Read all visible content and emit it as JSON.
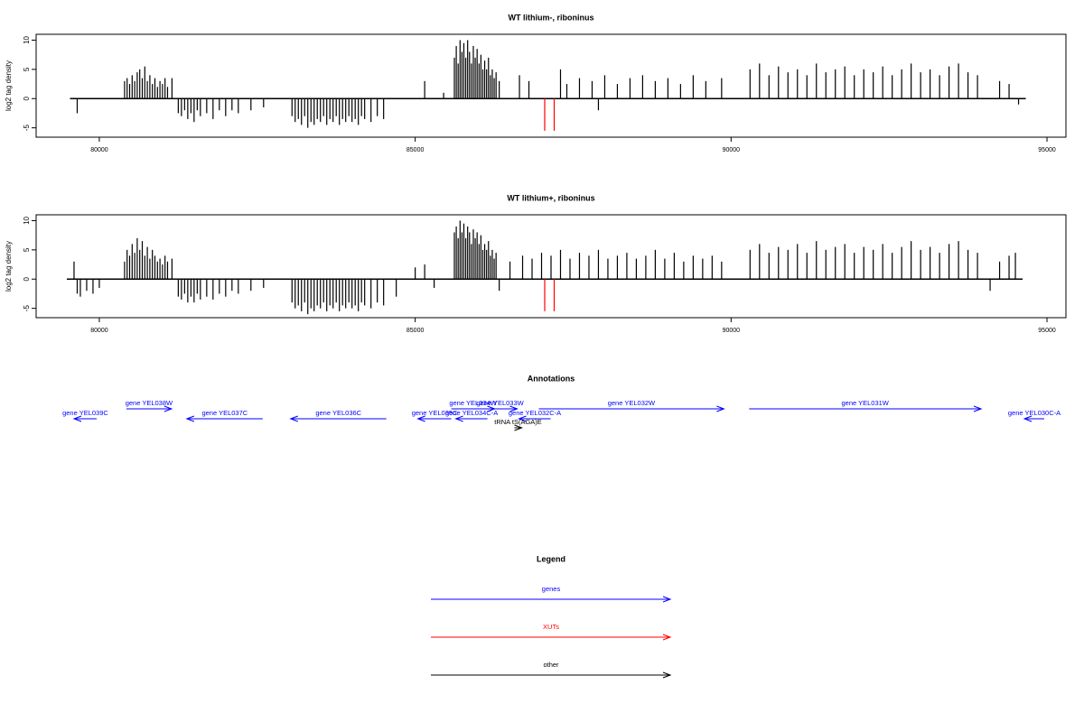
{
  "chart_data": [
    {
      "type": "bar",
      "title": "WT lithium-, riboninus",
      "y_label": "log2 tag density",
      "color": "#000000",
      "xlim": [
        79000,
        95300
      ],
      "ylim": [
        -6.6,
        11
      ],
      "xticks": [
        80000,
        85000,
        90000,
        95000
      ],
      "yticks": [
        -5,
        0,
        5,
        10
      ],
      "x": [
        79650,
        80400,
        80440,
        80480,
        80520,
        80560,
        80600,
        80640,
        80680,
        80720,
        80760,
        80800,
        80840,
        80880,
        80920,
        80960,
        81000,
        81040,
        81080,
        81150,
        81250,
        81300,
        81350,
        81400,
        81450,
        81500,
        81550,
        81600,
        81700,
        81800,
        81900,
        82000,
        82100,
        82200,
        82400,
        82600,
        83050,
        83100,
        83150,
        83200,
        83250,
        83300,
        83350,
        83400,
        83450,
        83500,
        83550,
        83600,
        83650,
        83700,
        83750,
        83800,
        83850,
        83900,
        83950,
        84000,
        84050,
        84100,
        84150,
        84200,
        84300,
        84400,
        84500,
        85150,
        85450,
        85620,
        85650,
        85680,
        85710,
        85740,
        85770,
        85800,
        85830,
        85860,
        85890,
        85920,
        85950,
        85980,
        86010,
        86040,
        86070,
        86100,
        86130,
        86160,
        86190,
        86220,
        86250,
        86280,
        86330,
        86650,
        86800,
        87300,
        87400,
        87600,
        87800,
        87900,
        88000,
        88200,
        88400,
        88600,
        88800,
        89000,
        89200,
        89400,
        89600,
        89850,
        90300,
        90450,
        90600,
        90750,
        90900,
        91050,
        91200,
        91350,
        91500,
        91650,
        91800,
        91950,
        92100,
        92250,
        92400,
        92550,
        92700,
        92850,
        93000,
        93150,
        93300,
        93450,
        93600,
        93750,
        93900,
        94250,
        94400,
        94550
      ],
      "values": [
        -2.5,
        3,
        3.5,
        2.5,
        4,
        3,
        4.5,
        5,
        3.5,
        5.5,
        3,
        4,
        2.5,
        3.5,
        2,
        3,
        2.5,
        3.5,
        2,
        3.5,
        -2.5,
        -3,
        -2,
        -3.5,
        -2.5,
        -4,
        -2,
        -3,
        -2.5,
        -3.5,
        -2,
        -3,
        -2,
        -2.5,
        -2,
        -1.5,
        -3,
        -4,
        -3.5,
        -4.5,
        -3,
        -5,
        -4,
        -4.5,
        -3.5,
        -4,
        -3,
        -4.5,
        -3.5,
        -4,
        -3,
        -4.5,
        -3.5,
        -4,
        -3,
        -4,
        -3.5,
        -4.5,
        -3,
        -3.5,
        -4,
        -3,
        -3.5,
        3,
        1,
        7,
        9,
        6,
        10,
        8,
        9.5,
        7,
        10,
        8,
        6,
        9,
        7,
        8.5,
        6,
        7.5,
        5,
        6.5,
        5,
        7,
        4,
        5,
        3.5,
        4.5,
        3,
        4,
        3,
        5,
        2.5,
        3.5,
        3,
        -2,
        4,
        2.5,
        3.5,
        4,
        3,
        3.5,
        2.5,
        4,
        3,
        3.5,
        5,
        6,
        4,
        5.5,
        4.5,
        5,
        4,
        6,
        4.5,
        5,
        5.5,
        4,
        5,
        4.5,
        5.5,
        4,
        5,
        6,
        4.5,
        5,
        4,
        5.5,
        6,
        4.5,
        4,
        3,
        2.5,
        -1
      ],
      "highlights": {
        "color": "#ff0000",
        "x": [
          87050,
          87200
        ],
        "values": [
          -5.5,
          -5.5
        ]
      }
    },
    {
      "type": "bar",
      "title": "WT lithium+, riboninus",
      "y_label": "log2 tag density",
      "color": "#000000",
      "xlim": [
        79000,
        95300
      ],
      "ylim": [
        -6.6,
        11
      ],
      "xticks": [
        80000,
        85000,
        90000,
        95000
      ],
      "yticks": [
        -5,
        0,
        5,
        10
      ],
      "x": [
        79600,
        79650,
        79700,
        79800,
        79900,
        80000,
        80400,
        80440,
        80480,
        80520,
        80560,
        80600,
        80640,
        80680,
        80720,
        80760,
        80800,
        80840,
        80880,
        80920,
        80960,
        81000,
        81040,
        81080,
        81150,
        81250,
        81300,
        81350,
        81400,
        81450,
        81500,
        81550,
        81600,
        81700,
        81800,
        81900,
        82000,
        82100,
        82200,
        82400,
        82600,
        83050,
        83100,
        83150,
        83200,
        83250,
        83300,
        83350,
        83400,
        83450,
        83500,
        83550,
        83600,
        83650,
        83700,
        83750,
        83800,
        83850,
        83900,
        83950,
        84000,
        84050,
        84100,
        84150,
        84200,
        84300,
        84400,
        84500,
        84700,
        85000,
        85150,
        85300,
        85620,
        85650,
        85680,
        85710,
        85740,
        85770,
        85800,
        85830,
        85860,
        85890,
        85920,
        85950,
        85980,
        86010,
        86040,
        86070,
        86100,
        86130,
        86160,
        86190,
        86220,
        86250,
        86280,
        86330,
        86500,
        86700,
        86850,
        87000,
        87150,
        87300,
        87450,
        87600,
        87750,
        87900,
        88050,
        88200,
        88350,
        88500,
        88650,
        88800,
        88950,
        89100,
        89250,
        89400,
        89550,
        89700,
        89850,
        90300,
        90450,
        90600,
        90750,
        90900,
        91050,
        91200,
        91350,
        91500,
        91650,
        91800,
        91950,
        92100,
        92250,
        92400,
        92550,
        92700,
        92850,
        93000,
        93150,
        93300,
        93450,
        93600,
        93750,
        93900,
        94100,
        94250,
        94400,
        94500
      ],
      "values": [
        3,
        -2.5,
        -3,
        -2,
        -2.5,
        -1.5,
        3,
        5,
        4,
        6,
        4.5,
        7,
        5,
        6.5,
        4,
        5.5,
        3.5,
        5,
        4,
        3,
        3.5,
        2.5,
        4,
        3,
        3.5,
        -3,
        -3.5,
        -2.5,
        -4,
        -3,
        -4,
        -2.5,
        -3.5,
        -3,
        -3.5,
        -2.5,
        -3,
        -2,
        -2.5,
        -2,
        -1.5,
        -4,
        -5,
        -4.5,
        -5.5,
        -4,
        -6,
        -5,
        -5.5,
        -4.5,
        -5,
        -4,
        -5.5,
        -4.5,
        -5,
        -4,
        -5.5,
        -4.5,
        -5,
        -4,
        -5,
        -4.5,
        -5.5,
        -4,
        -4.5,
        -5,
        -4,
        -4.5,
        -3,
        2,
        2.5,
        -1.5,
        8,
        9,
        7,
        10,
        8,
        9.5,
        7,
        9,
        8,
        6,
        8.5,
        7,
        8,
        6,
        7.5,
        5,
        6,
        5,
        6.5,
        4,
        5,
        3.5,
        4.5,
        -2,
        3,
        4,
        3.5,
        4.5,
        4,
        5,
        3.5,
        4.5,
        4,
        5,
        3.5,
        4,
        4.5,
        3.5,
        4,
        5,
        3.5,
        4.5,
        3,
        4,
        3.5,
        4,
        3,
        5,
        6,
        4.5,
        5.5,
        5,
        6,
        4.5,
        6.5,
        5,
        5.5,
        6,
        4.5,
        5.5,
        5,
        6,
        4.5,
        5.5,
        6.5,
        5,
        5.5,
        4.5,
        6,
        6.5,
        5,
        4.5,
        -2,
        3,
        4,
        4.5
      ],
      "highlights": {
        "color": "#ff0000",
        "x": [
          87050,
          87200
        ],
        "values": [
          -5.5,
          -5.5
        ]
      }
    }
  ],
  "annotations": {
    "title": "Annotations",
    "items": [
      {
        "label": "gene YEL039C",
        "start": 79957,
        "end": 79600,
        "row": 1,
        "color": "#0000ff"
      },
      {
        "label": "gene YEL038W",
        "start": 80429,
        "end": 81143,
        "row": 0,
        "color": "#0000ff"
      },
      {
        "label": "gene YEL037C",
        "start": 82586,
        "end": 81386,
        "row": 1,
        "color": "#0000ff"
      },
      {
        "label": "gene YEL036C",
        "start": 84543,
        "end": 83029,
        "row": 1,
        "color": "#0000ff"
      },
      {
        "label": "gene YEL035C",
        "start": 85571,
        "end": 85043,
        "row": 1,
        "color": "#0000ff"
      },
      {
        "label": "gene YEL034W",
        "start": 85571,
        "end": 86257,
        "row": 0,
        "color": "#0000ff"
      },
      {
        "label": "gene YEL033W",
        "start": 86071,
        "end": 86614,
        "row": 0,
        "color": "#0000ff"
      },
      {
        "label": "gene YEL034C-A",
        "start": 86143,
        "end": 85643,
        "row": 1,
        "color": "#0000ff"
      },
      {
        "label": "gene YEL032C-A",
        "start": 87143,
        "end": 86643,
        "row": 1,
        "color": "#0000ff"
      },
      {
        "label": "tRNA tS(AGA)E",
        "start": 86571,
        "end": 86686,
        "row": 2,
        "color": "#000000"
      },
      {
        "label": "gene YEL032W",
        "start": 86957,
        "end": 89886,
        "row": 0,
        "color": "#0000ff"
      },
      {
        "label": "gene YEL031W",
        "start": 90286,
        "end": 93957,
        "row": 0,
        "color": "#0000ff"
      },
      {
        "label": "gene YEL030C-A",
        "start": 94957,
        "end": 94643,
        "row": 1,
        "color": "#0000ff"
      }
    ]
  },
  "legend": {
    "title": "Legend",
    "items": [
      {
        "label": "genes",
        "color": "#0000ff"
      },
      {
        "label": "XUTs",
        "color": "#ff0000"
      },
      {
        "label": "other",
        "color": "#000000"
      }
    ]
  }
}
